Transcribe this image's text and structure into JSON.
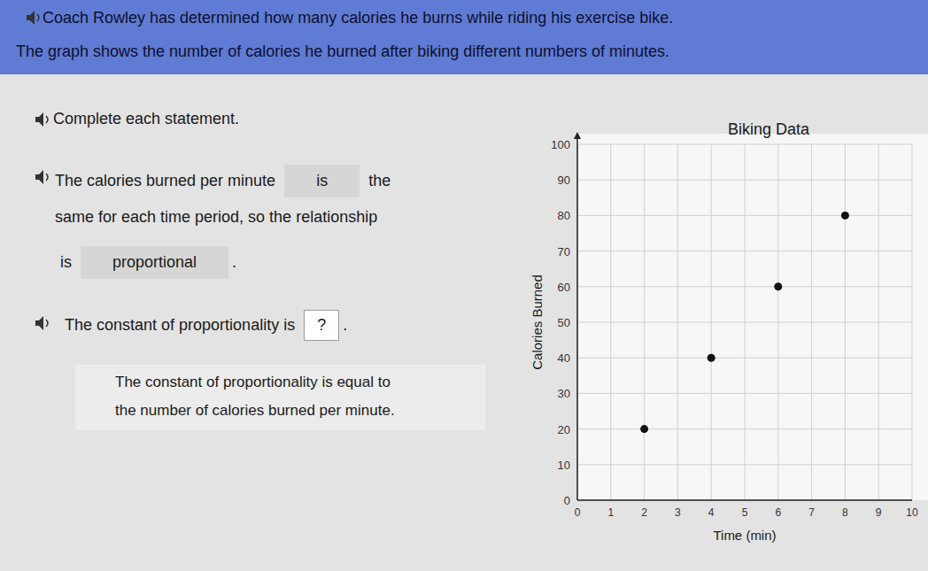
{
  "header": {
    "lines": [
      "Coach Rowley has determined how many calories he burns while riding his exercise bike.",
      "The graph shows the number of calories he burned after biking different numbers of minutes."
    ]
  },
  "prompt": "Complete each statement.",
  "statements": [
    {
      "lines": [
        [
          "The calories burned per minute",
          {
            "choice": "is"
          },
          "the"
        ],
        [
          "same for each time period, so the relationship"
        ],
        [
          "is",
          {
            "choice": "proportional"
          },
          "."
        ]
      ]
    },
    {
      "lines": [
        [
          "The constant of proportionality is",
          {
            "blank": "?"
          },
          "."
        ]
      ]
    }
  ],
  "hint": {
    "lines": [
      "The constant of proportionality is equal to",
      "the number of calories burned per minute."
    ]
  },
  "chart_data": {
    "type": "scatter",
    "title": "Biking Data",
    "x_label": "Time (min)",
    "y_label": "Calories Burned",
    "x": [
      2,
      4,
      6,
      8
    ],
    "values": [
      20,
      40,
      60,
      80
    ],
    "color": "#111111",
    "marker": "circle",
    "xlim": [
      0,
      10
    ],
    "xticks": [
      0,
      1,
      2,
      3,
      4,
      5,
      6,
      7,
      8,
      9,
      10
    ],
    "ylim": [
      0,
      100
    ],
    "yticks": [
      0,
      10,
      20,
      30,
      40,
      50,
      60,
      70,
      80,
      90,
      100
    ],
    "grid": true
  }
}
